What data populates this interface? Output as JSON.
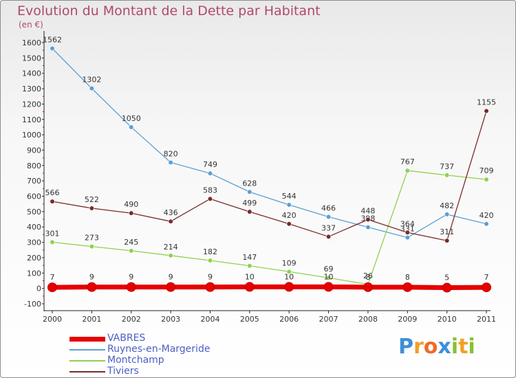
{
  "title": "Evolution du Montant de la Dette par Habitant",
  "subtitle": "(en €)",
  "logo": {
    "letters": [
      "P",
      "r",
      "o",
      "x",
      "i",
      "t",
      "i"
    ],
    "colors": [
      "#3b8fd8",
      "#f0a028",
      "#f06a28",
      "#3b8fd8",
      "#88c030",
      "#f0a028",
      "#88c030"
    ]
  },
  "chart_data": {
    "type": "line",
    "categories": [
      "2000",
      "2001",
      "2002",
      "2003",
      "2004",
      "2005",
      "2006",
      "2007",
      "2008",
      "2009",
      "2010",
      "2011"
    ],
    "ylim": [
      -100,
      1600
    ],
    "yticks": [
      "-100",
      "0",
      "100",
      "200",
      "300",
      "400",
      "500",
      "600",
      "700",
      "800",
      "900",
      "1000",
      "1100",
      "1200",
      "1300",
      "1400",
      "1500",
      "1600"
    ],
    "grid": false,
    "legend_position": "bottom-left",
    "series": [
      {
        "name": "VABRES",
        "color": "#e60000",
        "values": [
          7,
          9,
          9,
          9,
          9,
          10,
          10,
          10,
          8,
          8,
          5,
          7
        ]
      },
      {
        "name": "Ruynes-en-Margeride",
        "color": "#5a9fd4",
        "values": [
          1562,
          1302,
          1050,
          820,
          749,
          628,
          544,
          466,
          398,
          331,
          482,
          420
        ]
      },
      {
        "name": "Montchamp",
        "color": "#8fd14f",
        "values": [
          301,
          273,
          245,
          214,
          182,
          147,
          109,
          69,
          26,
          767,
          737,
          709
        ]
      },
      {
        "name": "Tiviers",
        "color": "#7a2a2a",
        "values": [
          566,
          522,
          490,
          436,
          583,
          499,
          420,
          337,
          448,
          364,
          311,
          1155
        ]
      }
    ]
  }
}
